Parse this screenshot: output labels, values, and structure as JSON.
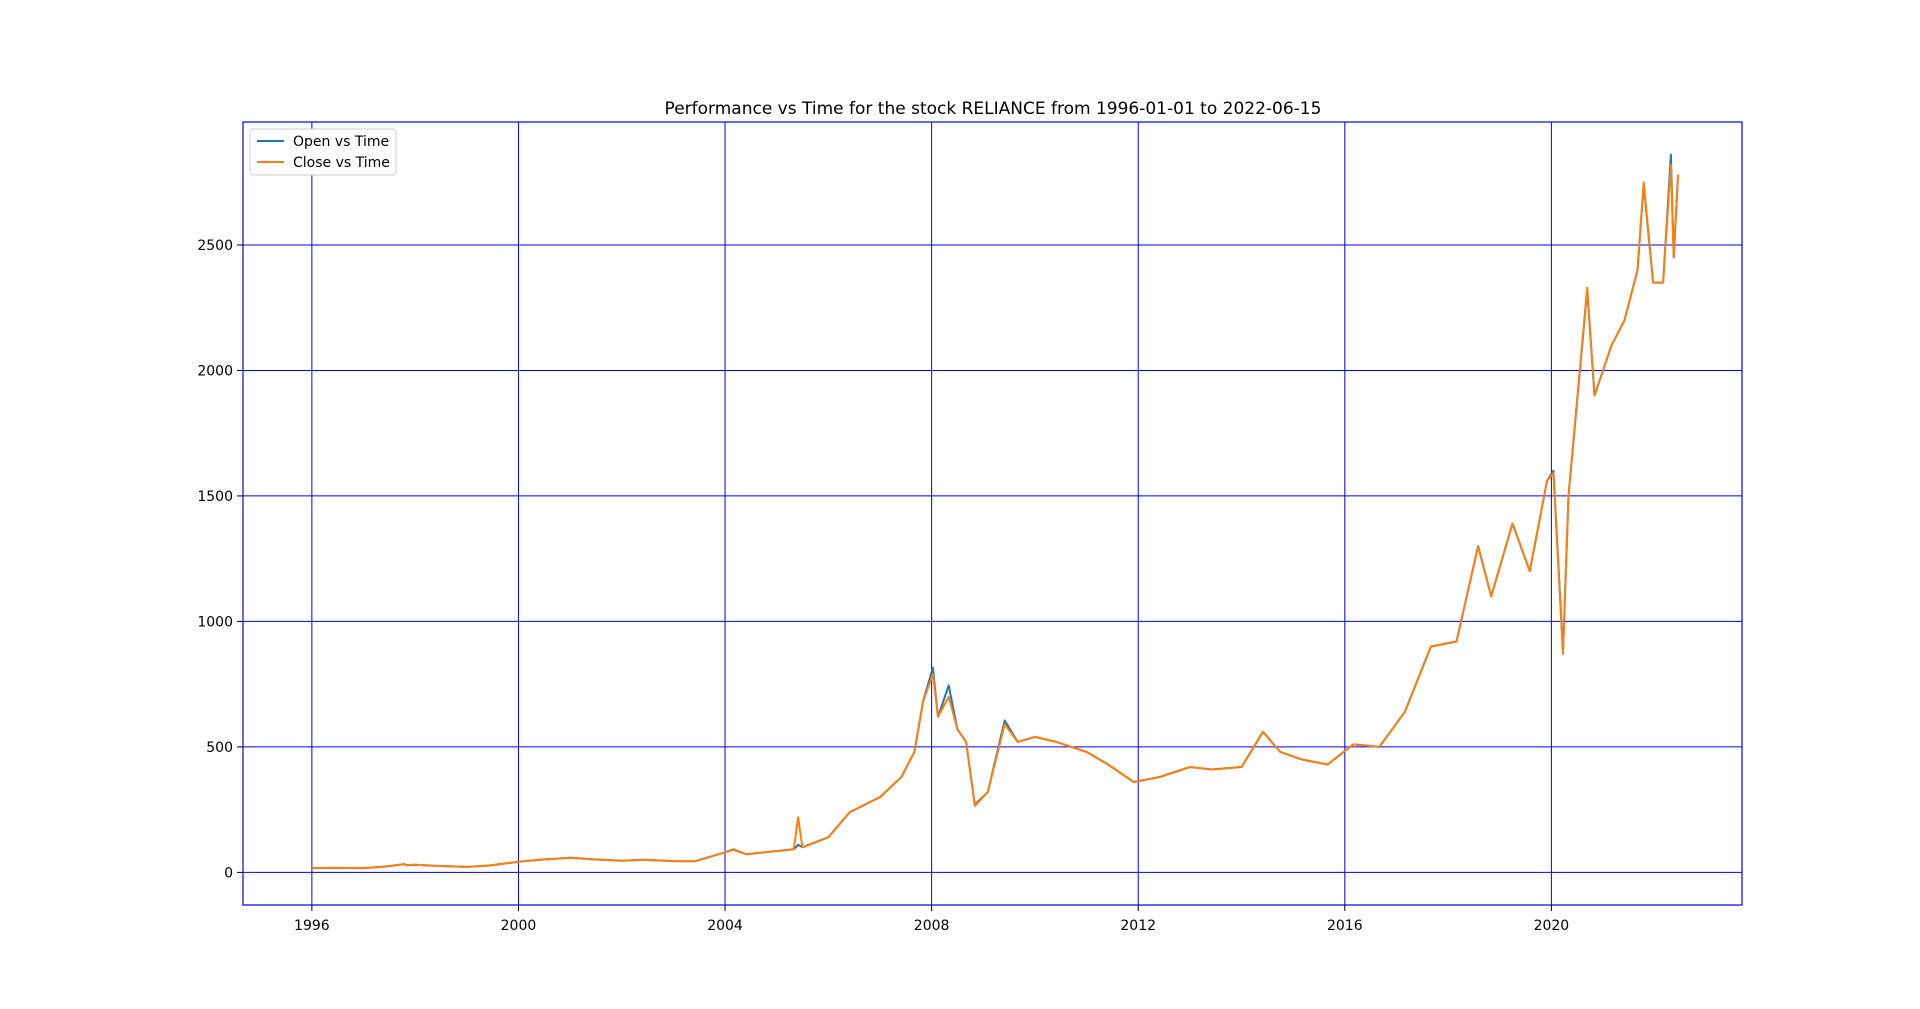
{
  "chart_data": {
    "type": "line",
    "title": "Performance vs Time for the stock RELIANCE from 1996-01-01 to 2022-06-15",
    "xlabel": "",
    "ylabel": "",
    "x_ticks": [
      "1996",
      "2000",
      "2004",
      "2008",
      "2012",
      "2016",
      "2020"
    ],
    "y_ticks": [
      0,
      500,
      1000,
      1500,
      2000,
      2500
    ],
    "xlim": [
      "1994-09-01",
      "2023-09-10"
    ],
    "ylim": [
      -130,
      2990
    ],
    "grid": true,
    "grid_color": "#0000ff",
    "legend_position": "top-left",
    "series": [
      {
        "name": "Open vs Time",
        "color": "#1f77b4",
        "points": [
          [
            "1996-01-01",
            17
          ],
          [
            "1996-06-01",
            18
          ],
          [
            "1997-01-01",
            17
          ],
          [
            "1997-06-01",
            23
          ],
          [
            "1997-10-15",
            33
          ],
          [
            "1997-11-01",
            28
          ],
          [
            "1998-01-01",
            30
          ],
          [
            "1998-06-01",
            26
          ],
          [
            "1999-01-01",
            22
          ],
          [
            "1999-06-01",
            27
          ],
          [
            "2000-01-01",
            42
          ],
          [
            "2000-06-01",
            50
          ],
          [
            "2001-01-01",
            58
          ],
          [
            "2001-06-01",
            52
          ],
          [
            "2002-01-01",
            46
          ],
          [
            "2002-06-01",
            50
          ],
          [
            "2003-01-01",
            45
          ],
          [
            "2003-06-01",
            44
          ],
          [
            "2004-01-01",
            80
          ],
          [
            "2004-03-01",
            92
          ],
          [
            "2004-06-01",
            72
          ],
          [
            "2005-01-01",
            85
          ],
          [
            "2005-05-01",
            92
          ],
          [
            "2005-06-01",
            110
          ],
          [
            "2005-07-01",
            100
          ],
          [
            "2006-01-01",
            140
          ],
          [
            "2006-06-01",
            240
          ],
          [
            "2007-01-01",
            300
          ],
          [
            "2007-06-01",
            380
          ],
          [
            "2007-09-01",
            480
          ],
          [
            "2007-11-01",
            680
          ],
          [
            "2008-01-10",
            815
          ],
          [
            "2008-02-15",
            620
          ],
          [
            "2008-05-01",
            745
          ],
          [
            "2008-07-01",
            570
          ],
          [
            "2008-09-01",
            520
          ],
          [
            "2008-11-01",
            270
          ],
          [
            "2009-02-01",
            320
          ],
          [
            "2009-06-01",
            605
          ],
          [
            "2009-09-01",
            520
          ],
          [
            "2010-01-01",
            540
          ],
          [
            "2010-06-01",
            520
          ],
          [
            "2011-01-01",
            480
          ],
          [
            "2011-06-01",
            430
          ],
          [
            "2011-12-01",
            360
          ],
          [
            "2012-06-01",
            380
          ],
          [
            "2013-01-01",
            420
          ],
          [
            "2013-06-01",
            410
          ],
          [
            "2014-01-01",
            420
          ],
          [
            "2014-06-01",
            560
          ],
          [
            "2014-10-01",
            480
          ],
          [
            "2015-03-01",
            450
          ],
          [
            "2015-09-01",
            430
          ],
          [
            "2016-03-01",
            510
          ],
          [
            "2016-09-01",
            500
          ],
          [
            "2017-03-01",
            640
          ],
          [
            "2017-09-01",
            900
          ],
          [
            "2018-03-01",
            920
          ],
          [
            "2018-08-01",
            1300
          ],
          [
            "2018-11-01",
            1100
          ],
          [
            "2019-04-01",
            1390
          ],
          [
            "2019-08-01",
            1200
          ],
          [
            "2019-12-01",
            1560
          ],
          [
            "2020-01-15",
            1600
          ],
          [
            "2020-03-23",
            880
          ],
          [
            "2020-05-01",
            1500
          ],
          [
            "2020-09-10",
            2320
          ],
          [
            "2020-11-01",
            1900
          ],
          [
            "2021-03-01",
            2100
          ],
          [
            "2021-06-01",
            2200
          ],
          [
            "2021-09-01",
            2400
          ],
          [
            "2021-10-15",
            2740
          ],
          [
            "2021-12-20",
            2350
          ],
          [
            "2022-03-01",
            2350
          ],
          [
            "2022-04-25",
            2860
          ],
          [
            "2022-05-15",
            2450
          ],
          [
            "2022-06-15",
            2780
          ]
        ]
      },
      {
        "name": "Close vs Time",
        "color": "#ff7f0e",
        "points": [
          [
            "1996-01-01",
            17
          ],
          [
            "1996-06-01",
            18
          ],
          [
            "1997-01-01",
            17
          ],
          [
            "1997-06-01",
            23
          ],
          [
            "1997-10-15",
            33
          ],
          [
            "1997-11-01",
            28
          ],
          [
            "1998-01-01",
            30
          ],
          [
            "1998-06-01",
            26
          ],
          [
            "1999-01-01",
            22
          ],
          [
            "1999-06-01",
            27
          ],
          [
            "2000-01-01",
            42
          ],
          [
            "2000-06-01",
            50
          ],
          [
            "2001-01-01",
            58
          ],
          [
            "2001-06-01",
            52
          ],
          [
            "2002-01-01",
            46
          ],
          [
            "2002-06-01",
            50
          ],
          [
            "2003-01-01",
            45
          ],
          [
            "2003-06-01",
            44
          ],
          [
            "2004-01-01",
            80
          ],
          [
            "2004-03-01",
            90
          ],
          [
            "2004-06-01",
            72
          ],
          [
            "2005-01-01",
            85
          ],
          [
            "2005-05-01",
            92
          ],
          [
            "2005-06-01",
            220
          ],
          [
            "2005-07-01",
            100
          ],
          [
            "2006-01-01",
            140
          ],
          [
            "2006-06-01",
            240
          ],
          [
            "2007-01-01",
            300
          ],
          [
            "2007-06-01",
            380
          ],
          [
            "2007-09-01",
            480
          ],
          [
            "2007-11-01",
            680
          ],
          [
            "2008-01-10",
            790
          ],
          [
            "2008-02-15",
            620
          ],
          [
            "2008-05-01",
            700
          ],
          [
            "2008-07-01",
            570
          ],
          [
            "2008-09-01",
            520
          ],
          [
            "2008-11-01",
            265
          ],
          [
            "2009-02-01",
            320
          ],
          [
            "2009-06-01",
            590
          ],
          [
            "2009-09-01",
            520
          ],
          [
            "2010-01-01",
            540
          ],
          [
            "2010-06-01",
            520
          ],
          [
            "2011-01-01",
            480
          ],
          [
            "2011-06-01",
            430
          ],
          [
            "2011-12-01",
            360
          ],
          [
            "2012-06-01",
            380
          ],
          [
            "2013-01-01",
            420
          ],
          [
            "2013-06-01",
            410
          ],
          [
            "2014-01-01",
            420
          ],
          [
            "2014-06-01",
            560
          ],
          [
            "2014-10-01",
            480
          ],
          [
            "2015-03-01",
            450
          ],
          [
            "2015-09-01",
            430
          ],
          [
            "2016-03-01",
            510
          ],
          [
            "2016-09-01",
            500
          ],
          [
            "2017-03-01",
            640
          ],
          [
            "2017-09-01",
            900
          ],
          [
            "2018-03-01",
            920
          ],
          [
            "2018-08-01",
            1300
          ],
          [
            "2018-11-01",
            1100
          ],
          [
            "2019-04-01",
            1390
          ],
          [
            "2019-08-01",
            1200
          ],
          [
            "2019-12-01",
            1560
          ],
          [
            "2020-01-15",
            1590
          ],
          [
            "2020-03-23",
            870
          ],
          [
            "2020-05-01",
            1500
          ],
          [
            "2020-09-10",
            2330
          ],
          [
            "2020-11-01",
            1900
          ],
          [
            "2021-03-01",
            2100
          ],
          [
            "2021-06-01",
            2200
          ],
          [
            "2021-09-01",
            2400
          ],
          [
            "2021-10-15",
            2750
          ],
          [
            "2021-12-20",
            2350
          ],
          [
            "2022-03-01",
            2350
          ],
          [
            "2022-04-25",
            2820
          ],
          [
            "2022-05-15",
            2450
          ],
          [
            "2022-06-15",
            2780
          ]
        ]
      }
    ]
  }
}
